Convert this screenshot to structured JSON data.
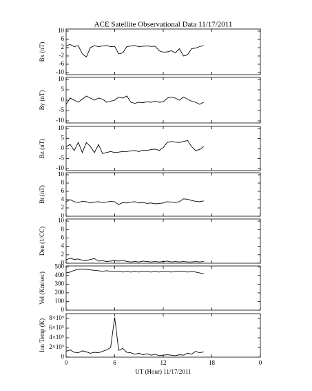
{
  "chart_data": [
    {
      "type": "line",
      "title": "ACE Satellite Observational Data   11/17/2011",
      "ylabel": "Bx (nT)",
      "color": "#000000",
      "x": [
        0,
        0.5,
        1,
        1.5,
        2,
        2.5,
        3,
        3.5,
        4,
        4.5,
        5,
        5.5,
        6,
        6.5,
        7,
        7.5,
        8,
        8.5,
        9,
        9.5,
        10,
        10.5,
        11,
        11.5,
        12,
        12.5,
        13,
        13.5,
        14,
        14.5,
        15,
        15.5,
        16,
        16.5,
        17
      ],
      "values": [
        3,
        3.5,
        2.5,
        3,
        -1,
        -2.5,
        2,
        3,
        2.5,
        2.8,
        3,
        2.5,
        2.6,
        -1,
        -0.5,
        2.5,
        2.8,
        3,
        2.5,
        2.7,
        2.8,
        2.6,
        2.7,
        0.5,
        -0.2,
        0,
        0.5,
        -0.5,
        1.5,
        -2,
        -1.5,
        1.5,
        1.8,
        2.5,
        3
      ],
      "xlim": [
        0,
        24
      ],
      "xticks": [
        0,
        6,
        12,
        18,
        {
          "value": 24,
          "label": "0"
        }
      ],
      "ylim": [
        -11,
        11
      ],
      "yticks": [
        -10,
        -6,
        -2,
        2,
        6,
        10
      ]
    },
    {
      "type": "line",
      "ylabel": "By (nT)",
      "color": "#000000",
      "x": [
        0,
        0.5,
        1,
        1.5,
        2,
        2.5,
        3,
        3.5,
        4,
        4.5,
        5,
        5.5,
        6,
        6.5,
        7,
        7.5,
        8,
        8.5,
        9,
        9.5,
        10,
        10.5,
        11,
        11.5,
        12,
        12.5,
        13,
        13.5,
        14,
        14.5,
        15,
        15.5,
        16,
        16.5,
        17
      ],
      "values": [
        -2,
        1,
        0,
        -1,
        0.5,
        2,
        1,
        0,
        1,
        0.5,
        -1,
        -0.5,
        0,
        1.5,
        1,
        2,
        -1,
        -1.5,
        -1,
        -1.2,
        -0.8,
        -1,
        -0.5,
        -1,
        -0.8,
        1,
        1.5,
        1,
        0,
        1.5,
        0.5,
        -0.5,
        -1,
        -2,
        -1
      ],
      "xlim": [
        0,
        24
      ],
      "xticks": [
        0,
        6,
        12,
        18,
        {
          "value": 24,
          "label": "0"
        }
      ],
      "ylim": [
        -11,
        11
      ],
      "yticks": [
        -10,
        -5,
        0,
        5,
        10
      ]
    },
    {
      "type": "line",
      "ylabel": "Bz (nT)",
      "color": "#000000",
      "x": [
        0,
        0.5,
        1,
        1.5,
        2,
        2.5,
        3,
        3.5,
        4,
        4.5,
        5,
        5.5,
        6,
        6.5,
        7,
        7.5,
        8,
        8.5,
        9,
        9.5,
        10,
        10.5,
        11,
        11.5,
        12,
        12.5,
        13,
        13.5,
        14,
        14.5,
        15,
        15.5,
        16,
        16.5,
        17
      ],
      "values": [
        1,
        2,
        -1,
        3,
        -2,
        3,
        1,
        -2,
        2,
        -2.5,
        -2,
        -1.5,
        -2,
        -1.8,
        -1.5,
        -1.5,
        -1.2,
        -1,
        -1.5,
        -0.8,
        -1,
        -0.5,
        -0.3,
        -1,
        0.5,
        3,
        3.5,
        3.2,
        3,
        3.5,
        4,
        1,
        -1,
        -0.5,
        1
      ],
      "xlim": [
        0,
        24
      ],
      "xticks": [
        0,
        6,
        12,
        18,
        {
          "value": 24,
          "label": "0"
        }
      ],
      "ylim": [
        -11,
        11
      ],
      "yticks": [
        -10,
        -5,
        0,
        5,
        10
      ]
    },
    {
      "type": "line",
      "ylabel": "Bt (nT)",
      "color": "#000000",
      "x": [
        0,
        0.5,
        1,
        1.5,
        2,
        2.5,
        3,
        3.5,
        4,
        4.5,
        5,
        5.5,
        6,
        6.5,
        7,
        7.5,
        8,
        8.5,
        9,
        9.5,
        10,
        10.5,
        11,
        11.5,
        12,
        12.5,
        13,
        13.5,
        14,
        14.5,
        15,
        15.5,
        16,
        16.5,
        17
      ],
      "values": [
        3.5,
        4,
        3.5,
        3.3,
        3.6,
        3.5,
        3.2,
        3.4,
        3.5,
        3.3,
        3.4,
        3.6,
        3.5,
        2.8,
        3.3,
        3.2,
        3.4,
        3.5,
        3.2,
        3.3,
        3.1,
        3.2,
        3.0,
        3.1,
        3.2,
        3.5,
        3.4,
        3.3,
        3.5,
        4.2,
        4.1,
        3.8,
        3.6,
        3.5,
        3.7
      ],
      "xlim": [
        0,
        24
      ],
      "xticks": [
        0,
        6,
        12,
        18,
        {
          "value": 24,
          "label": "0"
        }
      ],
      "ylim": [
        0,
        10.5
      ],
      "yticks": [
        0,
        2,
        4,
        6,
        8,
        10
      ]
    },
    {
      "type": "line",
      "ylabel": "Den (1/CC)",
      "color": "#000000",
      "x": [
        0,
        0.5,
        1,
        1.5,
        2,
        2.5,
        3,
        3.5,
        4,
        4.5,
        5,
        5.5,
        6,
        6.5,
        7,
        7.5,
        8,
        8.5,
        9,
        9.5,
        10,
        10.5,
        11,
        11.5,
        12,
        12.5,
        13,
        13.5,
        14,
        14.5,
        15,
        15.5,
        16,
        16.5,
        17
      ],
      "values": [
        0.8,
        1.2,
        0.9,
        1.0,
        0.7,
        0.6,
        0.9,
        1.1,
        0.5,
        0.6,
        0.4,
        0.5,
        0.6,
        0.5,
        0.7,
        0.4,
        0.3,
        0.4,
        0.3,
        0.5,
        0.4,
        0.3,
        0.4,
        0.3,
        0.4,
        0.5,
        0.3,
        0.4,
        0.3,
        0.4,
        0.3,
        0.3,
        0.4,
        0.3,
        0.4
      ],
      "xlim": [
        0,
        24
      ],
      "xticks": [
        0,
        6,
        12,
        18,
        {
          "value": 24,
          "label": "0"
        }
      ],
      "ylim": [
        0,
        10.5
      ],
      "yticks": [
        0,
        2,
        4,
        6,
        8,
        10
      ]
    },
    {
      "type": "line",
      "ylabel": "Vel (Km/sec)",
      "color": "#000000",
      "x": [
        0,
        0.5,
        1,
        1.5,
        2,
        2.5,
        3,
        3.5,
        4,
        4.5,
        5,
        5.5,
        6,
        6.5,
        7,
        7.5,
        8,
        8.5,
        9,
        9.5,
        10,
        10.5,
        11,
        11.5,
        12,
        12.5,
        13,
        13.5,
        14,
        14.5,
        15,
        15.5,
        16,
        16.5,
        17
      ],
      "values": [
        430,
        440,
        460,
        470,
        475,
        470,
        465,
        460,
        455,
        450,
        455,
        450,
        445,
        450,
        440,
        445,
        440,
        445,
        440,
        450,
        445,
        440,
        445,
        440,
        450,
        445,
        440,
        445,
        450,
        445,
        440,
        445,
        440,
        430,
        420
      ],
      "xlim": [
        0,
        24
      ],
      "xticks": [
        0,
        6,
        12,
        18,
        {
          "value": 24,
          "label": "0"
        }
      ],
      "ylim": [
        0,
        510
      ],
      "yticks": [
        0,
        100,
        200,
        300,
        400,
        500
      ]
    },
    {
      "type": "line",
      "ylabel": "Ion Temp (K)",
      "xlabel": "UT (Hour)   11/17/2011",
      "color": "#000000",
      "x": [
        0,
        0.5,
        1,
        1.5,
        2,
        2.5,
        3,
        3.5,
        4,
        4.5,
        5,
        5.5,
        6,
        6.5,
        7,
        7.5,
        8,
        8.5,
        9,
        9.5,
        10,
        10.5,
        11,
        11.5,
        12,
        12.5,
        13,
        13.5,
        14,
        14.5,
        15,
        15.5,
        16,
        16.5,
        17
      ],
      "values": [
        120000,
        150000,
        100000,
        90000,
        130000,
        110000,
        80000,
        100000,
        90000,
        120000,
        150000,
        200000,
        820000,
        140000,
        180000,
        100000,
        90000,
        60000,
        80000,
        50000,
        70000,
        40000,
        60000,
        30000,
        40000,
        50000,
        40000,
        30000,
        50000,
        40000,
        80000,
        60000,
        120000,
        90000,
        110000
      ],
      "xlim": [
        0,
        24
      ],
      "xticks": [
        0,
        6,
        12,
        18,
        {
          "value": 24,
          "label": "0"
        }
      ],
      "ylim": [
        0,
        900000
      ],
      "yticks": [
        0,
        {
          "value": 200000,
          "label": "2×10⁵"
        },
        {
          "value": 400000,
          "label": "4×10⁵"
        },
        {
          "value": 600000,
          "label": "6×10⁵"
        },
        {
          "value": 800000,
          "label": "8×10⁵"
        }
      ]
    }
  ]
}
